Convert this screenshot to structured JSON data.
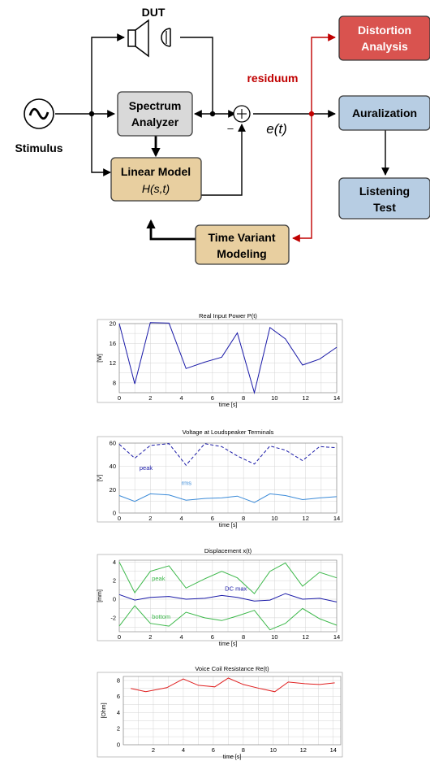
{
  "diagram": {
    "dut_label": "DUT",
    "stimulus_label": "Stimulus",
    "blocks": {
      "spectrum_analyzer": [
        "Spectrum",
        "Analyzer"
      ],
      "linear_model": [
        "Linear Model",
        "H(s,t)"
      ],
      "time_variant": [
        "Time Variant",
        "Modeling"
      ],
      "distortion": [
        "Distortion",
        "Analysis"
      ],
      "auralization": [
        "Auralization"
      ],
      "listening": [
        "Listening",
        "Test"
      ]
    },
    "residuum_label": "residuum",
    "minus_sign": "–",
    "error_signal": "e(t)",
    "colors": {
      "gray_block": "#d9d9d9",
      "tan_block": "#e8cfa0",
      "red_block": "#d9534f",
      "blue_block": "#b7cde3",
      "residuum_red": "#c00000"
    }
  },
  "chart_data": [
    {
      "type": "line",
      "title": "Real Input Power P(t)",
      "xlabel": "time [s]",
      "ylabel": "[W]",
      "xlim": [
        0,
        14
      ],
      "ylim": [
        6,
        20
      ],
      "yticks": [
        8,
        12,
        16,
        20
      ],
      "xticks": [
        0,
        2,
        4,
        6,
        8,
        10,
        12,
        14
      ],
      "grid": true,
      "series": [
        {
          "color": "#1a1aa8",
          "dash": false,
          "x": [
            0,
            1,
            2,
            3.2,
            4.3,
            5.5,
            6.6,
            7.6,
            8.7,
            9.7,
            10.7,
            11.8,
            12.9,
            14
          ],
          "y": [
            20,
            7.8,
            20.2,
            20.1,
            10.9,
            12.2,
            13.2,
            18.1,
            6.0,
            19.2,
            16.9,
            11.6,
            12.8,
            15.2
          ]
        }
      ],
      "annotations": []
    },
    {
      "type": "line",
      "title": "Voltage at Loudspeaker Terminals",
      "xlabel": "time [s]",
      "ylabel": "[V]",
      "xlim": [
        0,
        14
      ],
      "ylim": [
        0,
        60
      ],
      "yticks": [
        0,
        20,
        40,
        60
      ],
      "xticks": [
        0,
        2,
        4,
        6,
        8,
        10,
        12,
        14
      ],
      "grid": true,
      "series": [
        {
          "name": "peak",
          "color": "#1a1aa8",
          "dash": true,
          "x": [
            0,
            1,
            2,
            3.2,
            4.3,
            5.5,
            6.6,
            7.6,
            8.7,
            9.7,
            10.7,
            11.8,
            12.9,
            14
          ],
          "y": [
            59,
            47,
            58,
            59.5,
            41,
            59.5,
            57,
            49,
            42,
            57.5,
            54,
            45,
            57,
            56
          ]
        },
        {
          "name": "rms",
          "color": "#3a8ad8",
          "dash": false,
          "x": [
            0,
            1,
            2,
            3.2,
            4.3,
            5.5,
            6.6,
            7.6,
            8.7,
            9.7,
            10.7,
            11.8,
            12.9,
            14
          ],
          "y": [
            15,
            10,
            16.5,
            15.5,
            11,
            12.5,
            13,
            14.5,
            9,
            16.5,
            15,
            11.5,
            13,
            14
          ]
        }
      ],
      "annotations": [
        {
          "text": "peak",
          "x": 1.3,
          "y": 37,
          "color": "#1a1aa8"
        },
        {
          "text": "rms",
          "x": 4.0,
          "y": 24,
          "color": "#3a8ad8"
        }
      ]
    },
    {
      "type": "line",
      "title": "Displacement x(t)",
      "xlabel": "time [s]",
      "ylabel": "[mm]",
      "xlim": [
        0,
        14
      ],
      "ylim": [
        -3.5,
        4.2
      ],
      "yticks": [
        -2,
        0,
        2,
        4
      ],
      "xticks": [
        0,
        2,
        4,
        6,
        8,
        10,
        12,
        14
      ],
      "grid": true,
      "series": [
        {
          "name": "peak",
          "color": "#3cb84a",
          "dash": false,
          "x": [
            0,
            1,
            2,
            3.2,
            4.3,
            5.5,
            6.6,
            7.6,
            8.7,
            9.7,
            10.7,
            11.8,
            12.9,
            14
          ],
          "y": [
            4.0,
            0.7,
            3.0,
            3.6,
            1.2,
            2.2,
            3.0,
            2.3,
            0.6,
            3.0,
            3.9,
            1.4,
            2.9,
            2.3
          ]
        },
        {
          "name": "DC max",
          "color": "#1a1aa8",
          "dash": false,
          "x": [
            0,
            1,
            2,
            3.2,
            4.3,
            5.5,
            6.6,
            7.6,
            8.7,
            9.7,
            10.7,
            11.8,
            12.9,
            14
          ],
          "y": [
            0.5,
            -0.1,
            0.2,
            0.3,
            0.0,
            0.1,
            0.4,
            0.2,
            -0.2,
            -0.1,
            0.6,
            0.0,
            0.1,
            -0.3
          ]
        },
        {
          "name": "bottom",
          "color": "#3cb84a",
          "dash": false,
          "x": [
            0,
            1,
            2,
            3.2,
            4.3,
            5.5,
            6.6,
            7.6,
            8.7,
            9.7,
            10.7,
            11.8,
            12.9,
            14
          ],
          "y": [
            -2.9,
            -0.7,
            -2.6,
            -2.9,
            -1.4,
            -2.0,
            -2.3,
            -1.8,
            -1.2,
            -3.3,
            -2.6,
            -1.0,
            -2.1,
            -2.8
          ]
        }
      ],
      "annotations": [
        {
          "text": "peak",
          "x": 2.1,
          "y": 2.0,
          "color": "#3cb84a"
        },
        {
          "text": "DC max",
          "x": 6.8,
          "y": 0.9,
          "color": "#1a1aa8"
        },
        {
          "text": "bottom",
          "x": 2.1,
          "y": -2.1,
          "color": "#3cb84a"
        }
      ]
    },
    {
      "type": "line",
      "title": "Voice Coil Resistance Re(t)",
      "xlabel": "time [s]",
      "ylabel": "[Ohm]",
      "xlim": [
        0,
        14.5
      ],
      "ylim": [
        0,
        8.5
      ],
      "yticks": [
        0,
        2,
        4,
        6,
        8
      ],
      "xticks": [
        2,
        4,
        6,
        8,
        10,
        12,
        14
      ],
      "grid": true,
      "series": [
        {
          "color": "#e02020",
          "dash": false,
          "x": [
            0.5,
            1.5,
            2.9,
            4.0,
            5.0,
            6.1,
            7.0,
            8.0,
            9.1,
            10.1,
            11.0,
            12.1,
            13.1,
            14.1
          ],
          "y": [
            7.0,
            6.6,
            7.1,
            8.2,
            7.4,
            7.2,
            8.3,
            7.5,
            7.0,
            6.6,
            7.8,
            7.6,
            7.5,
            7.7
          ]
        }
      ],
      "annotations": []
    }
  ]
}
